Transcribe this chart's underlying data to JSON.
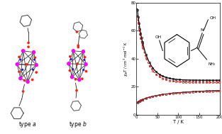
{
  "plot_xlim": [
    0,
    200
  ],
  "plot_ylim": [
    0,
    80
  ],
  "xlabel": "T / K",
  "ylabel": "$\\chi_{M}T$ / cm$^{3}$ mol$^{-1}$ K",
  "xticks": [
    0,
    50,
    100,
    150,
    200
  ],
  "yticks": [
    0,
    20,
    40,
    60,
    80
  ],
  "fig_width": 3.13,
  "fig_height": 1.89,
  "dpi": 100,
  "bg_color": "#ffffff",
  "mn_color": "#ff00ff",
  "o_color": "#ff2200",
  "n_color": "#2222cc",
  "bond_color": "#222222",
  "ring_color": "#444444"
}
